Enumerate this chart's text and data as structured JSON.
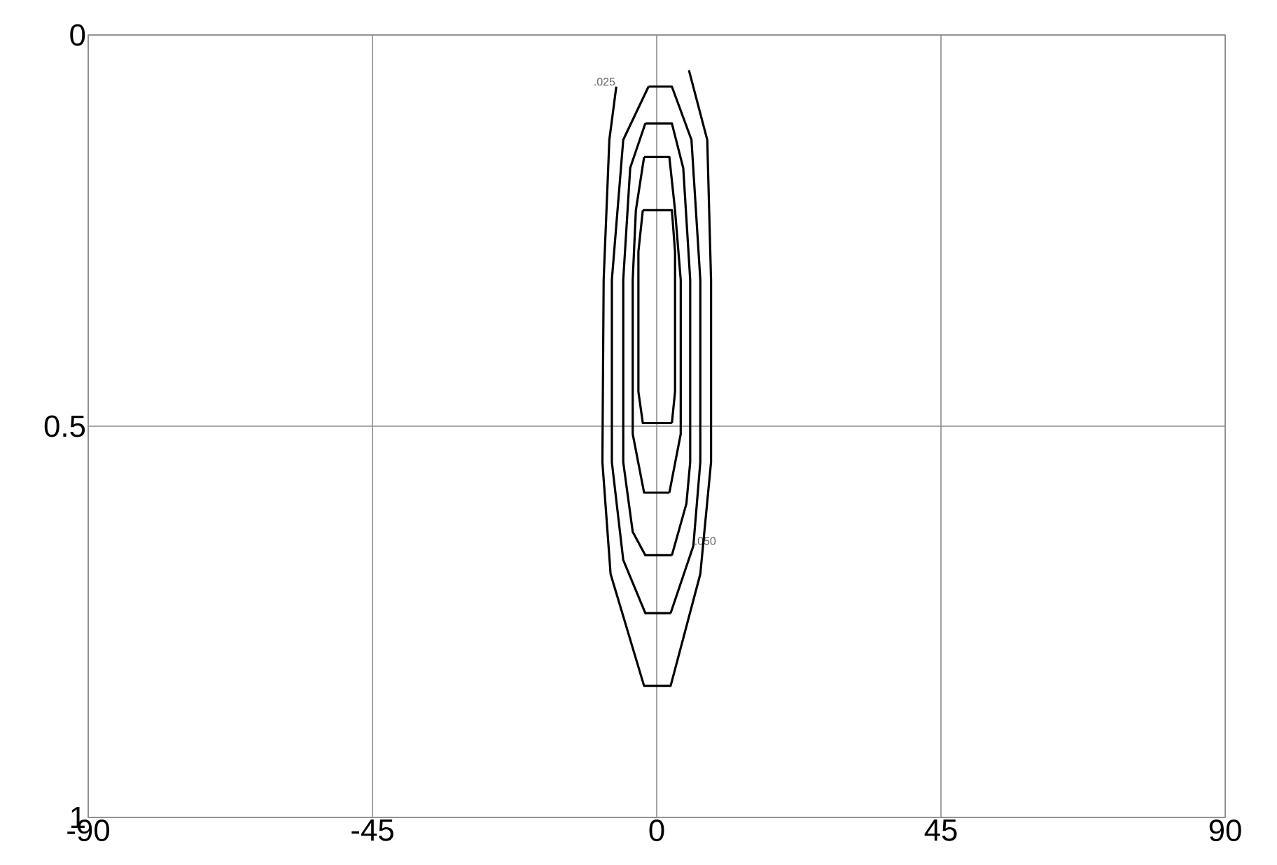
{
  "chart_data": {
    "type": "line",
    "xlim": [
      -90,
      90
    ],
    "ylim": [
      1,
      0
    ],
    "xticks": [
      -90,
      -45,
      0,
      45,
      90
    ],
    "yticks": [
      0,
      0.5,
      1
    ],
    "grid": true,
    "series": [
      {
        "color": "#000000",
        "x": [
          -6.4,
          -7.5,
          -8.4,
          -8.6,
          -7.3,
          -2.0,
          2.2,
          6.9,
          8.6,
          8.6,
          8.0,
          5.1
        ],
        "values": [
          0.066,
          0.134,
          0.313,
          0.546,
          0.689,
          0.832,
          0.832,
          0.689,
          0.546,
          0.313,
          0.134,
          0.045
        ]
      },
      {
        "color": "#000000",
        "x": [
          -1.3,
          -5.3,
          -7.1,
          -7.1,
          -5.3,
          -1.8,
          2.2
        ],
        "values": [
          0.066,
          0.134,
          0.313,
          0.546,
          0.671,
          0.739,
          0.739
        ]
      },
      {
        "color": "#000000",
        "x": [
          2.2,
          5.8,
          6.9,
          6.9,
          5.5,
          2.4,
          -1.3
        ],
        "values": [
          0.739,
          0.653,
          0.546,
          0.313,
          0.134,
          0.066,
          0.066
        ]
      },
      {
        "color": "#000000",
        "x": [
          -1.8,
          -4.2,
          -5.3,
          -5.3,
          -3.8,
          -1.8,
          2.4
        ],
        "values": [
          0.113,
          0.17,
          0.313,
          0.546,
          0.635,
          0.665,
          0.665
        ]
      },
      {
        "color": "#000000",
        "x": [
          2.4,
          4.7,
          5.3,
          5.3,
          4.2,
          2.4,
          -1.8
        ],
        "values": [
          0.665,
          0.599,
          0.546,
          0.313,
          0.17,
          0.113,
          0.113
        ]
      },
      {
        "color": "#000000",
        "x": [
          -2.0,
          -3.3,
          -3.8,
          -3.8,
          -2.0,
          2.0
        ],
        "values": [
          0.156,
          0.224,
          0.313,
          0.51,
          0.585,
          0.585
        ]
      },
      {
        "color": "#000000",
        "x": [
          2.0,
          3.8,
          3.8,
          2.9,
          2.0,
          -2.0
        ],
        "values": [
          0.585,
          0.51,
          0.313,
          0.224,
          0.156,
          0.156
        ]
      },
      {
        "color": "#000000",
        "x": [
          -2.2,
          -2.9,
          -2.9,
          -2.2,
          2.4
        ],
        "values": [
          0.224,
          0.277,
          0.456,
          0.496,
          0.496
        ]
      },
      {
        "color": "#000000",
        "x": [
          2.4,
          2.9,
          2.9,
          2.4,
          -2.2
        ],
        "values": [
          0.496,
          0.456,
          0.277,
          0.224,
          0.224
        ]
      }
    ],
    "annotations": [
      {
        "text": ".025",
        "x": -6.4,
        "y": 0.066
      },
      {
        "text": ".050",
        "x": 5.8,
        "y": 0.653
      }
    ]
  }
}
